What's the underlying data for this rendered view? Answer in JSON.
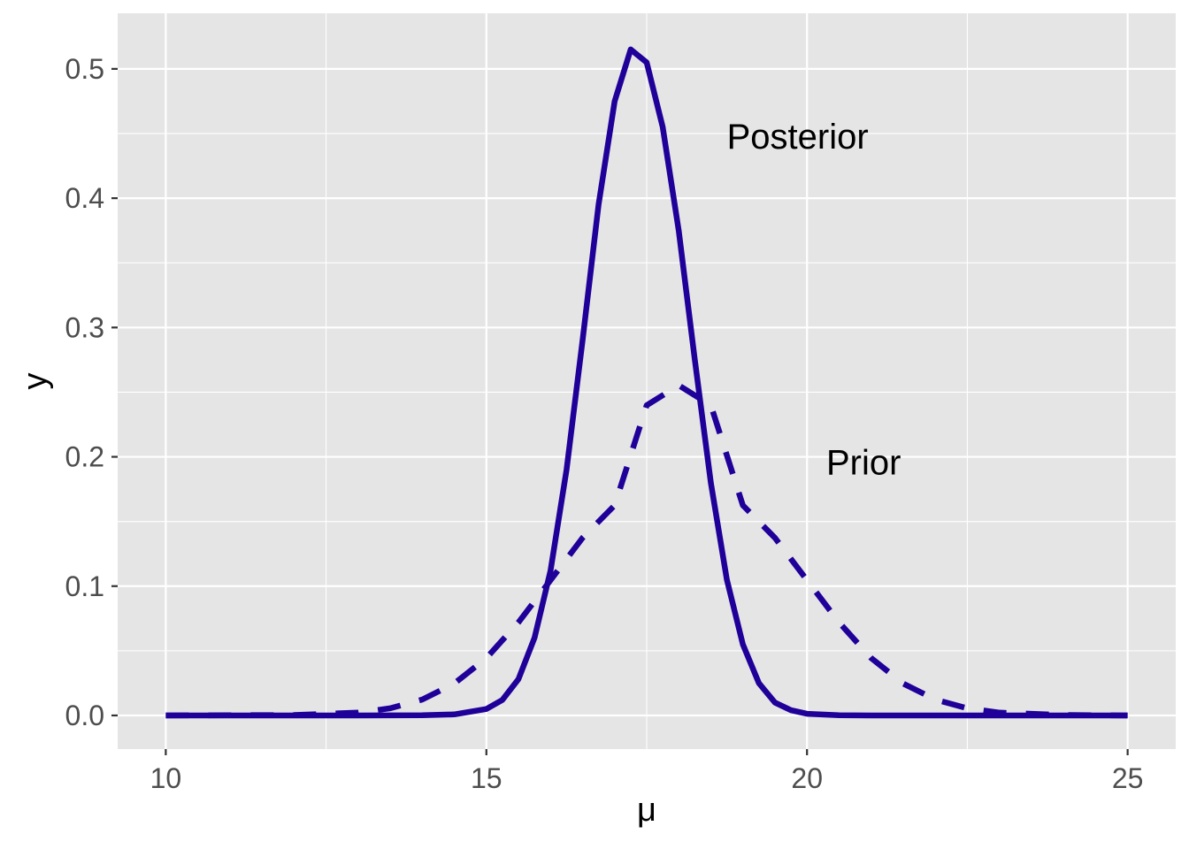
{
  "chart_data": {
    "type": "line",
    "xlabel": "μ",
    "ylabel": "y",
    "xlim": [
      9.25,
      25.75
    ],
    "ylim": [
      -0.026,
      0.543
    ],
    "x_ticks": [
      10,
      15,
      20,
      25
    ],
    "x_tick_labels": [
      "10",
      "15",
      "20",
      "25"
    ],
    "y_ticks": [
      0.0,
      0.1,
      0.2,
      0.3,
      0.4,
      0.5
    ],
    "y_tick_labels": [
      "0.0",
      "0.1",
      "0.2",
      "0.3",
      "0.4",
      "0.5"
    ],
    "grid": true,
    "colors": {
      "panel": "#e5e5e5",
      "grid": "#ffffff",
      "line": "#1f0099"
    },
    "series": [
      {
        "name": "Posterior",
        "style": "solid",
        "x": [
          10,
          12,
          13,
          14,
          14.5,
          15,
          15.25,
          15.5,
          15.75,
          16,
          16.25,
          16.5,
          16.75,
          17,
          17.25,
          17.5,
          17.75,
          18,
          18.25,
          18.5,
          18.75,
          19,
          19.25,
          19.5,
          19.75,
          20,
          20.5,
          21,
          22,
          25
        ],
        "y": [
          0,
          0,
          0,
          0.0001,
          0.0008,
          0.005,
          0.012,
          0.028,
          0.06,
          0.112,
          0.19,
          0.29,
          0.395,
          0.475,
          0.515,
          0.505,
          0.455,
          0.375,
          0.275,
          0.18,
          0.105,
          0.055,
          0.025,
          0.01,
          0.004,
          0.0013,
          0.0001,
          0,
          0,
          0
        ]
      },
      {
        "name": "Prior",
        "style": "dashed",
        "x": [
          10,
          12,
          13,
          13.5,
          14,
          14.5,
          15,
          15.5,
          16,
          16.5,
          17,
          17.5,
          18,
          18.5,
          19,
          19.5,
          20,
          20.5,
          21,
          21.5,
          22,
          22.5,
          23,
          24,
          25
        ],
        "y": [
          0,
          0.0003,
          0.0022,
          0.0055,
          0.0123,
          0.0247,
          0.0444,
          0.0719,
          0.1046,
          0.1373,
          0.1625,
          0.2399,
          0.2553,
          0.2399,
          0.1625,
          0.1373,
          0.1046,
          0.0719,
          0.0444,
          0.0247,
          0.0123,
          0.0055,
          0.0022,
          0.0003,
          0.0
        ]
      }
    ],
    "annotations": [
      {
        "text": "Posterior",
        "x": 18.75,
        "y": 0.448
      },
      {
        "text": "Prior",
        "x": 20.3,
        "y": 0.196
      }
    ]
  }
}
